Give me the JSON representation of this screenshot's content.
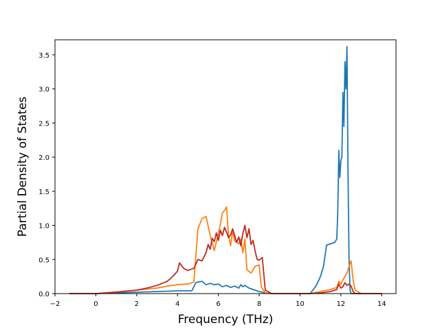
{
  "chart_data": {
    "type": "line",
    "title": "",
    "xlabel": "Frequency (THz)",
    "ylabel": "Partial Density of States",
    "xlim": [
      -2,
      14.7
    ],
    "ylim": [
      0,
      3.72
    ],
    "xticks": [
      -2,
      0,
      2,
      4,
      6,
      8,
      10,
      12,
      14
    ],
    "yticks": [
      0.0,
      0.5,
      1.0,
      1.5,
      2.0,
      2.5,
      3.0,
      3.5
    ],
    "xtick_labels": [
      "−2",
      "0",
      "2",
      "4",
      "6",
      "8",
      "10",
      "12",
      "14"
    ],
    "ytick_labels": [
      "0.0",
      "0.5",
      "1.0",
      "1.5",
      "2.0",
      "2.5",
      "3.0",
      "3.5"
    ],
    "grid": false,
    "legend": "none",
    "series": [
      {
        "color": "#1f77b4",
        "x": [
          -1.3,
          0.0,
          2.0,
          3.0,
          4.0,
          4.7,
          4.9,
          5.0,
          5.2,
          5.4,
          5.6,
          5.8,
          6.0,
          6.2,
          6.4,
          6.6,
          6.8,
          7.0,
          7.1,
          7.2,
          7.3,
          7.5,
          7.7,
          8.0,
          8.3,
          8.6,
          10.5,
          10.8,
          11.0,
          11.15,
          11.3,
          11.7,
          11.8,
          11.85,
          11.9,
          11.95,
          12.0,
          12.05,
          12.1,
          12.15,
          12.2,
          12.25,
          12.3,
          12.35,
          12.4,
          12.45,
          12.5,
          12.55,
          12.6,
          12.7,
          13.0,
          14.0
        ],
        "y": [
          0.0,
          0.0,
          0.02,
          0.03,
          0.04,
          0.04,
          0.16,
          0.17,
          0.18,
          0.13,
          0.15,
          0.13,
          0.14,
          0.1,
          0.12,
          0.09,
          0.11,
          0.08,
          0.13,
          0.1,
          0.12,
          0.08,
          0.06,
          0.03,
          0.01,
          0.0,
          0.0,
          0.12,
          0.25,
          0.4,
          0.71,
          0.75,
          0.8,
          1.2,
          2.1,
          1.7,
          1.95,
          2.0,
          2.95,
          2.45,
          3.4,
          3.0,
          3.62,
          1.8,
          0.5,
          0.05,
          0.0,
          0.0,
          0.0,
          0.0,
          0.0,
          0.0
        ]
      },
      {
        "color": "#ff7f0e",
        "x": [
          -1.3,
          0.0,
          2.0,
          3.0,
          3.5,
          4.0,
          4.5,
          4.8,
          5.0,
          5.2,
          5.4,
          5.6,
          5.8,
          6.0,
          6.1,
          6.2,
          6.3,
          6.4,
          6.5,
          6.6,
          6.7,
          6.8,
          7.0,
          7.1,
          7.2,
          7.3,
          7.4,
          7.6,
          7.8,
          8.0,
          8.1,
          8.3,
          8.6,
          10.5,
          11.0,
          11.5,
          11.8,
          11.9,
          12.0,
          12.1,
          12.2,
          12.3,
          12.4,
          12.5,
          12.6,
          12.7,
          13.0,
          14.0
        ],
        "y": [
          0.0,
          0.0,
          0.05,
          0.08,
          0.11,
          0.13,
          0.14,
          0.17,
          0.95,
          1.1,
          1.13,
          0.85,
          0.63,
          0.88,
          1.02,
          1.18,
          1.22,
          1.27,
          0.85,
          0.7,
          0.92,
          0.77,
          0.73,
          0.8,
          0.6,
          0.8,
          0.35,
          0.3,
          0.4,
          0.42,
          0.1,
          0.01,
          0.0,
          0.0,
          0.03,
          0.06,
          0.09,
          0.18,
          0.14,
          0.2,
          0.25,
          0.3,
          0.4,
          0.48,
          0.2,
          0.05,
          0.0,
          0.0
        ]
      },
      {
        "color": "#c0271f",
        "x": [
          -1.3,
          0.0,
          1.0,
          2.0,
          2.5,
          3.0,
          3.5,
          3.8,
          4.0,
          4.1,
          4.2,
          4.3,
          4.5,
          4.8,
          5.0,
          5.2,
          5.4,
          5.5,
          5.6,
          5.7,
          5.8,
          5.9,
          6.0,
          6.1,
          6.2,
          6.3,
          6.4,
          6.5,
          6.6,
          6.7,
          6.8,
          6.9,
          7.0,
          7.1,
          7.2,
          7.3,
          7.4,
          7.5,
          7.6,
          7.7,
          7.8,
          7.9,
          8.0,
          8.15,
          8.3,
          8.6,
          10.5,
          11.0,
          11.5,
          11.8,
          11.9,
          12.0,
          12.1,
          12.2,
          12.3,
          12.4,
          12.5,
          12.6,
          12.7,
          13.0,
          14.0
        ],
        "y": [
          0.0,
          0.0,
          0.02,
          0.05,
          0.08,
          0.12,
          0.18,
          0.26,
          0.33,
          0.45,
          0.41,
          0.37,
          0.34,
          0.37,
          0.5,
          0.48,
          0.6,
          0.72,
          0.65,
          0.81,
          0.76,
          0.89,
          0.78,
          0.93,
          0.85,
          0.97,
          0.9,
          0.82,
          0.86,
          0.95,
          0.85,
          0.75,
          0.83,
          0.7,
          0.88,
          1.0,
          0.82,
          0.95,
          0.72,
          0.78,
          0.62,
          0.5,
          0.49,
          0.53,
          0.05,
          0.0,
          0.0,
          0.01,
          0.03,
          0.06,
          0.14,
          0.08,
          0.1,
          0.16,
          0.12,
          0.14,
          0.11,
          0.03,
          0.0,
          0.0,
          0.0
        ]
      }
    ]
  }
}
